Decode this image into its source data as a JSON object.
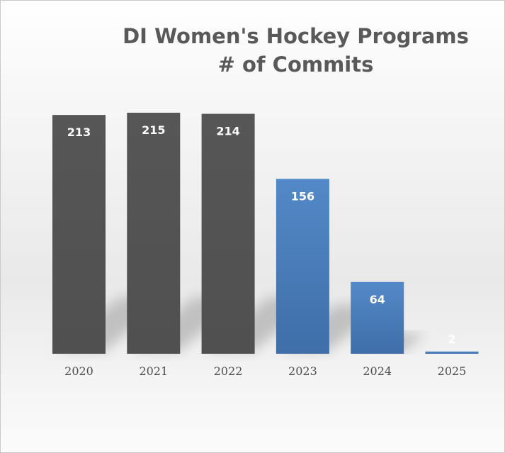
{
  "chart_data": {
    "type": "bar",
    "title_lines": [
      "DI Women's Hockey Programs",
      "# of Commits"
    ],
    "categories": [
      "2020",
      "2021",
      "2022",
      "2023",
      "2024",
      "2025"
    ],
    "values": [
      213,
      215,
      214,
      156,
      64,
      2
    ],
    "bar_colors": [
      "#535353",
      "#535353",
      "#535353",
      "#4a7ebf",
      "#4a7ebf",
      "#4a7ebf"
    ],
    "ylim": [
      0,
      215
    ],
    "grid": false,
    "legend": "none",
    "data_labels": true
  }
}
